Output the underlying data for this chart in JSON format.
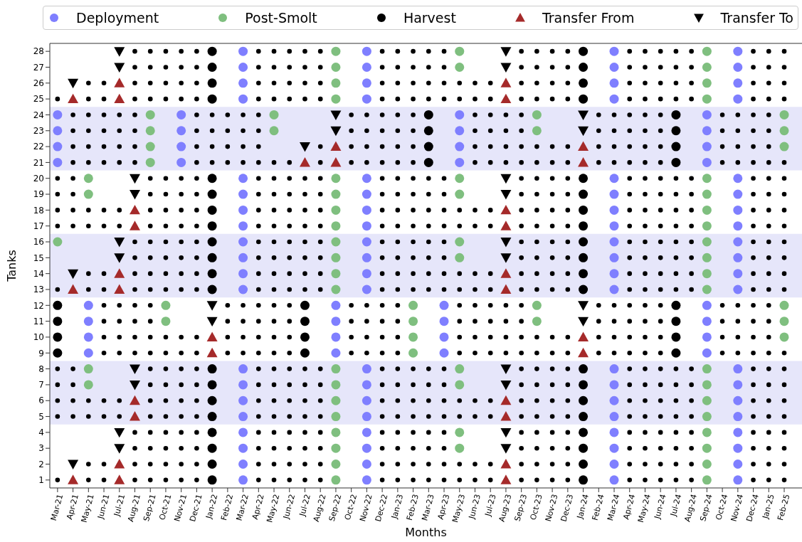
{
  "chart_data": {
    "type": "scatter",
    "xlabel": "Months",
    "ylabel": "Tanks",
    "legend": "top",
    "categories": [
      "Mar-21",
      "Apr-21",
      "May-21",
      "Jun-21",
      "Jul-21",
      "Aug-21",
      "Sep-21",
      "Oct-21",
      "Nov-21",
      "Dec-21",
      "Jan-22",
      "Feb-22",
      "Mar-22",
      "Apr-22",
      "May-22",
      "Jun-22",
      "Jul-22",
      "Aug-22",
      "Sep-22",
      "Oct-22",
      "Nov-22",
      "Dec-22",
      "Jan-23",
      "Feb-23",
      "Mar-23",
      "Apr-23",
      "May-23",
      "Jun-23",
      "Jul-23",
      "Aug-23",
      "Sep-23",
      "Oct-23",
      "Nov-23",
      "Dec-23",
      "Jan-24",
      "Feb-24",
      "Mar-24",
      "Apr-24",
      "May-24",
      "Jun-24",
      "Jul-24",
      "Aug-24",
      "Sep-24",
      "Oct-24",
      "Nov-24",
      "Dec-24",
      "Jan-25",
      "Feb-25"
    ],
    "ylim": [
      0.5,
      28.5
    ],
    "yticks": [
      1,
      2,
      3,
      4,
      5,
      6,
      7,
      8,
      9,
      10,
      11,
      12,
      13,
      14,
      15,
      16,
      17,
      18,
      19,
      20,
      21,
      22,
      23,
      24,
      25,
      26,
      27,
      28
    ],
    "bands": [
      {
        "axis": "y",
        "from": 4.5,
        "to": 8.5,
        "color": "#e6e6fa"
      },
      {
        "axis": "y",
        "from": 12.5,
        "to": 16.5,
        "color": "#e6e6fa"
      },
      {
        "axis": "y",
        "from": 20.5,
        "to": 24.5,
        "color": "#e6e6fa"
      }
    ],
    "series": [
      {
        "name": "Deployment",
        "color": "#7f7fff",
        "marker": "circle",
        "x": [
          "Mar-21",
          "Mar-21",
          "Mar-21",
          "Mar-21",
          "May-21",
          "May-21",
          "May-21",
          "May-21",
          "Nov-21",
          "Nov-21",
          "Nov-21",
          "Nov-21",
          "Mar-22",
          "Mar-22",
          "Mar-22",
          "Mar-22",
          "Mar-22",
          "Mar-22",
          "Mar-22",
          "Mar-22",
          "Mar-22",
          "Mar-22",
          "Mar-22",
          "Mar-22",
          "Mar-22",
          "Mar-22",
          "Mar-22",
          "Mar-22",
          "Mar-22",
          "Mar-22",
          "Mar-22",
          "Mar-22",
          "Sep-22",
          "Sep-22",
          "Sep-22",
          "Sep-22",
          "Nov-22",
          "Nov-22",
          "Nov-22",
          "Nov-22",
          "Nov-22",
          "Nov-22",
          "Nov-22",
          "Nov-22",
          "Nov-22",
          "Nov-22",
          "Nov-22",
          "Nov-22",
          "Nov-22",
          "Nov-22",
          "Nov-22",
          "Nov-22",
          "Nov-22",
          "Nov-22",
          "Nov-22",
          "Nov-22",
          "Apr-23",
          "Apr-23",
          "Apr-23",
          "Apr-23",
          "May-23",
          "May-23",
          "May-23",
          "May-23",
          "Mar-24",
          "Mar-24",
          "Mar-24",
          "Mar-24",
          "Mar-24",
          "Mar-24",
          "Mar-24",
          "Mar-24",
          "Mar-24",
          "Mar-24",
          "Mar-24",
          "Mar-24",
          "Mar-24",
          "Mar-24",
          "Mar-24",
          "Mar-24",
          "Mar-24",
          "Mar-24",
          "Mar-24",
          "Mar-24",
          "Sep-24",
          "Sep-24",
          "Sep-24",
          "Sep-24",
          "Sep-24",
          "Sep-24",
          "Sep-24",
          "Sep-24",
          "Nov-24",
          "Nov-24",
          "Nov-24",
          "Nov-24",
          "Nov-24",
          "Nov-24",
          "Nov-24",
          "Nov-24",
          "Nov-24",
          "Nov-24",
          "Nov-24",
          "Nov-24",
          "Nov-24",
          "Nov-24",
          "Nov-24",
          "Nov-24",
          "Nov-24",
          "Nov-24",
          "Nov-24",
          "Nov-24"
        ],
        "values": [
          21,
          22,
          23,
          24,
          9,
          10,
          11,
          12,
          21,
          22,
          23,
          24,
          1,
          2,
          3,
          4,
          5,
          6,
          7,
          8,
          13,
          14,
          15,
          16,
          17,
          18,
          19,
          20,
          25,
          26,
          27,
          28,
          9,
          10,
          11,
          12,
          1,
          2,
          3,
          4,
          5,
          6,
          7,
          8,
          13,
          14,
          15,
          16,
          17,
          18,
          19,
          20,
          25,
          26,
          27,
          28,
          9,
          10,
          11,
          12,
          21,
          22,
          23,
          24,
          1,
          2,
          3,
          4,
          5,
          6,
          7,
          8,
          13,
          14,
          15,
          16,
          17,
          18,
          19,
          20,
          25,
          26,
          27,
          28,
          9,
          10,
          11,
          12,
          21,
          22,
          23,
          24,
          1,
          2,
          3,
          4,
          5,
          6,
          7,
          8,
          13,
          14,
          15,
          16,
          17,
          18,
          19,
          20,
          25,
          26,
          27,
          28
        ]
      },
      {
        "name": "Post-Smolt",
        "color": "#7fbf7f",
        "marker": "circle",
        "x": [
          "Mar-21",
          "May-21",
          "May-21",
          "May-21",
          "May-21",
          "Sep-21",
          "Sep-21",
          "Sep-21",
          "Sep-21",
          "Oct-21",
          "Oct-21",
          "May-22",
          "May-22",
          "Sep-22",
          "Sep-22",
          "Sep-22",
          "Sep-22",
          "Sep-22",
          "Sep-22",
          "Sep-22",
          "Sep-22",
          "Sep-22",
          "Sep-22",
          "Sep-22",
          "Sep-22",
          "Sep-22",
          "Sep-22",
          "Sep-22",
          "Sep-22",
          "Sep-22",
          "Sep-22",
          "Sep-22",
          "Sep-22",
          "Feb-23",
          "Feb-23",
          "Feb-23",
          "Feb-23",
          "May-23",
          "May-23",
          "May-23",
          "May-23",
          "May-23",
          "May-23",
          "May-23",
          "May-23",
          "May-23",
          "May-23",
          "Oct-23",
          "Oct-23",
          "Oct-23",
          "Oct-23",
          "Sep-24",
          "Sep-24",
          "Sep-24",
          "Sep-24",
          "Sep-24",
          "Sep-24",
          "Sep-24",
          "Sep-24",
          "Sep-24",
          "Sep-24",
          "Sep-24",
          "Sep-24",
          "Sep-24",
          "Sep-24",
          "Sep-24",
          "Sep-24",
          "Sep-24",
          "Sep-24",
          "Sep-24",
          "Sep-24",
          "Feb-25",
          "Feb-25",
          "Feb-25",
          "Feb-25",
          "Feb-25",
          "Feb-25"
        ],
        "values": [
          16,
          7,
          8,
          19,
          20,
          21,
          22,
          23,
          24,
          11,
          12,
          23,
          24,
          1,
          2,
          3,
          4,
          5,
          6,
          7,
          8,
          13,
          14,
          15,
          16,
          17,
          18,
          19,
          20,
          25,
          26,
          27,
          28,
          9,
          10,
          11,
          12,
          3,
          4,
          7,
          8,
          15,
          16,
          19,
          20,
          27,
          28,
          11,
          12,
          23,
          24,
          1,
          2,
          3,
          4,
          5,
          6,
          7,
          8,
          13,
          14,
          15,
          16,
          17,
          18,
          19,
          20,
          25,
          26,
          27,
          28,
          10,
          11,
          12,
          22,
          23,
          24
        ]
      },
      {
        "name": "Harvest",
        "color": "#000000",
        "marker": "circle",
        "x": [
          "Mar-21",
          "Mar-21",
          "Mar-21",
          "Mar-21",
          "Jan-22",
          "Jan-22",
          "Jan-22",
          "Jan-22",
          "Jan-22",
          "Jan-22",
          "Jan-22",
          "Jan-22",
          "Jan-22",
          "Jan-22",
          "Jan-22",
          "Jan-22",
          "Jan-22",
          "Jan-22",
          "Jan-22",
          "Jan-22",
          "Jan-22",
          "Jan-22",
          "Jan-22",
          "Jan-22",
          "Jul-22",
          "Jul-22",
          "Jul-22",
          "Jul-22",
          "Mar-23",
          "Mar-23",
          "Mar-23",
          "Mar-23",
          "Jan-24",
          "Jan-24",
          "Jan-24",
          "Jan-24",
          "Jan-24",
          "Jan-24",
          "Jan-24",
          "Jan-24",
          "Jan-24",
          "Jan-24",
          "Jan-24",
          "Jan-24",
          "Jan-24",
          "Jan-24",
          "Jan-24",
          "Jan-24",
          "Jan-24",
          "Jan-24",
          "Jan-24",
          "Jan-24",
          "Jul-24",
          "Jul-24",
          "Jul-24",
          "Jul-24",
          "Jul-24",
          "Jul-24",
          "Jul-24",
          "Jul-24"
        ],
        "values": [
          9,
          10,
          11,
          12,
          1,
          2,
          3,
          4,
          5,
          6,
          7,
          8,
          13,
          14,
          15,
          16,
          17,
          18,
          19,
          20,
          25,
          26,
          27,
          28,
          9,
          10,
          11,
          12,
          21,
          22,
          23,
          24,
          1,
          2,
          3,
          4,
          5,
          6,
          7,
          8,
          13,
          14,
          15,
          16,
          17,
          18,
          19,
          20,
          25,
          26,
          27,
          28,
          9,
          10,
          11,
          12,
          21,
          22,
          23,
          24
        ]
      },
      {
        "name": "Transfer From",
        "color": "#a52a2a",
        "marker": "triangle",
        "x": [
          "Apr-21",
          "Apr-21",
          "Apr-21",
          "Jul-21",
          "Jul-21",
          "Jul-21",
          "Jul-21",
          "Jul-21",
          "Jul-21",
          "Aug-21",
          "Aug-21",
          "Aug-21",
          "Aug-21",
          "Jan-22",
          "Jan-22",
          "Jul-22",
          "Sep-22",
          "Sep-22",
          "Aug-23",
          "Aug-23",
          "Aug-23",
          "Aug-23",
          "Aug-23",
          "Aug-23",
          "Aug-23",
          "Aug-23",
          "Aug-23",
          "Aug-23",
          "Jan-24",
          "Jan-24",
          "Jan-24",
          "Jan-24"
        ],
        "values": [
          1,
          13,
          25,
          1,
          2,
          13,
          14,
          25,
          26,
          5,
          6,
          17,
          18,
          9,
          10,
          21,
          21,
          22,
          1,
          2,
          5,
          6,
          13,
          14,
          17,
          18,
          25,
          26,
          9,
          10,
          21,
          22
        ]
      },
      {
        "name": "Transfer To",
        "color": "#000000",
        "marker": "triangle-down",
        "x": [
          "Apr-21",
          "Apr-21",
          "Apr-21",
          "Jul-21",
          "Jul-21",
          "Jul-21",
          "Jul-21",
          "Jul-21",
          "Jul-21",
          "Aug-21",
          "Aug-21",
          "Aug-21",
          "Aug-21",
          "Jan-22",
          "Jan-22",
          "Jul-22",
          "Sep-22",
          "Sep-22",
          "Aug-23",
          "Aug-23",
          "Aug-23",
          "Aug-23",
          "Aug-23",
          "Aug-23",
          "Aug-23",
          "Aug-23",
          "Aug-23",
          "Aug-23",
          "Jan-24",
          "Jan-24",
          "Jan-24",
          "Jan-24"
        ],
        "values": [
          2,
          14,
          26,
          3,
          4,
          15,
          16,
          27,
          28,
          7,
          8,
          19,
          20,
          11,
          12,
          22,
          23,
          24,
          3,
          4,
          7,
          8,
          15,
          16,
          19,
          20,
          27,
          28,
          11,
          12,
          23,
          24
        ]
      },
      {
        "color": "#000000",
        "marker": "circle",
        "values": [
          1,
          null,
          1,
          1,
          null,
          1,
          1,
          1,
          1,
          1,
          null,
          null,
          null,
          1,
          1,
          1,
          1,
          1,
          null,
          null,
          null,
          1,
          1,
          1,
          1,
          1,
          1,
          1,
          1,
          null,
          1,
          1,
          1,
          1,
          null,
          null,
          null,
          1,
          1,
          1,
          1,
          1,
          null,
          null,
          null,
          1,
          1,
          1
        ]
      },
      {
        "color": "#000000",
        "marker": "circle",
        "values": [
          null,
          null,
          2,
          2,
          null,
          2,
          2,
          2,
          2,
          2,
          null,
          null,
          null,
          2,
          2,
          2,
          2,
          2,
          null,
          null,
          null,
          2,
          2,
          2,
          2,
          2,
          2,
          2,
          2,
          null,
          2,
          2,
          2,
          2,
          null,
          null,
          null,
          2,
          2,
          2,
          2,
          2,
          null,
          null,
          null,
          2,
          2,
          2
        ]
      },
      {
        "color": "#000000",
        "marker": "circle",
        "values": [
          null,
          null,
          null,
          null,
          null,
          3,
          3,
          3,
          3,
          3,
          null,
          null,
          null,
          3,
          3,
          3,
          3,
          3,
          null,
          null,
          null,
          3,
          3,
          3,
          3,
          3,
          null,
          null,
          null,
          null,
          3,
          3,
          3,
          3,
          null,
          null,
          null,
          3,
          3,
          3,
          3,
          3,
          null,
          null,
          null,
          3,
          3,
          3
        ]
      },
      {
        "color": "#000000",
        "marker": "circle",
        "values": [
          null,
          null,
          null,
          null,
          null,
          4,
          4,
          4,
          4,
          4,
          null,
          null,
          null,
          4,
          4,
          4,
          4,
          4,
          null,
          null,
          null,
          4,
          4,
          4,
          4,
          4,
          null,
          null,
          null,
          null,
          4,
          4,
          4,
          4,
          null,
          null,
          null,
          4,
          4,
          4,
          4,
          4,
          null,
          null,
          null,
          4,
          4,
          4
        ]
      },
      {
        "color": "#000000",
        "marker": "circle",
        "values": [
          5,
          5,
          5,
          5,
          5,
          null,
          5,
          5,
          5,
          5,
          null,
          null,
          null,
          5,
          5,
          5,
          5,
          5,
          null,
          null,
          null,
          5,
          5,
          5,
          5,
          5,
          5,
          5,
          5,
          null,
          5,
          5,
          5,
          5,
          null,
          null,
          null,
          5,
          5,
          5,
          5,
          5,
          null,
          null,
          null,
          5,
          5,
          5
        ]
      },
      {
        "color": "#000000",
        "marker": "circle",
        "values": [
          6,
          6,
          6,
          6,
          6,
          null,
          6,
          6,
          6,
          6,
          null,
          null,
          null,
          6,
          6,
          6,
          6,
          6,
          null,
          null,
          null,
          6,
          6,
          6,
          6,
          6,
          6,
          6,
          6,
          null,
          6,
          6,
          6,
          6,
          null,
          null,
          null,
          6,
          6,
          6,
          6,
          6,
          null,
          null,
          null,
          6,
          6,
          6
        ]
      },
      {
        "color": "#000000",
        "marker": "circle",
        "values": [
          7,
          7,
          null,
          null,
          null,
          null,
          7,
          7,
          7,
          7,
          null,
          null,
          null,
          7,
          7,
          7,
          7,
          7,
          null,
          null,
          null,
          7,
          7,
          7,
          7,
          7,
          null,
          null,
          null,
          null,
          7,
          7,
          7,
          7,
          null,
          null,
          null,
          7,
          7,
          7,
          7,
          7,
          null,
          null,
          null,
          7,
          7,
          7
        ]
      },
      {
        "color": "#000000",
        "marker": "circle",
        "values": [
          8,
          8,
          null,
          null,
          null,
          null,
          8,
          8,
          8,
          8,
          null,
          null,
          null,
          8,
          8,
          8,
          8,
          8,
          null,
          null,
          null,
          8,
          8,
          8,
          8,
          8,
          null,
          null,
          null,
          null,
          8,
          8,
          8,
          8,
          null,
          null,
          null,
          8,
          8,
          8,
          8,
          8,
          null,
          null,
          null,
          8,
          8,
          8
        ]
      },
      {
        "color": "#000000",
        "marker": "circle",
        "values": [
          null,
          null,
          null,
          9,
          9,
          9,
          9,
          9,
          9,
          9,
          null,
          9,
          9,
          9,
          9,
          9,
          null,
          null,
          null,
          9,
          9,
          9,
          9,
          null,
          null,
          null,
          9,
          9,
          9,
          9,
          9,
          9,
          9,
          9,
          null,
          9,
          9,
          9,
          9,
          9,
          null,
          null,
          null,
          9,
          9,
          9,
          9,
          9
        ]
      },
      {
        "color": "#000000",
        "marker": "circle",
        "values": [
          null,
          null,
          null,
          10,
          10,
          10,
          10,
          10,
          10,
          10,
          null,
          10,
          10,
          10,
          10,
          10,
          null,
          null,
          null,
          10,
          10,
          10,
          10,
          null,
          null,
          null,
          10,
          10,
          10,
          10,
          10,
          10,
          10,
          10,
          null,
          10,
          10,
          10,
          10,
          10,
          null,
          null,
          null,
          10,
          10,
          10,
          10,
          null
        ]
      },
      {
        "color": "#000000",
        "marker": "circle",
        "values": [
          null,
          null,
          null,
          11,
          11,
          11,
          11,
          null,
          null,
          null,
          null,
          11,
          11,
          11,
          11,
          11,
          null,
          null,
          null,
          11,
          11,
          11,
          11,
          null,
          null,
          null,
          11,
          11,
          11,
          11,
          11,
          null,
          null,
          null,
          null,
          11,
          11,
          11,
          11,
          11,
          null,
          null,
          null,
          11,
          11,
          11,
          11,
          null
        ]
      },
      {
        "color": "#000000",
        "marker": "circle",
        "values": [
          null,
          null,
          null,
          12,
          12,
          12,
          12,
          null,
          null,
          null,
          null,
          12,
          12,
          12,
          12,
          12,
          null,
          null,
          null,
          12,
          12,
          12,
          12,
          null,
          null,
          null,
          12,
          12,
          12,
          12,
          12,
          null,
          null,
          null,
          null,
          12,
          12,
          12,
          12,
          12,
          null,
          null,
          null,
          12,
          12,
          12,
          12,
          null
        ]
      },
      {
        "color": "#000000",
        "marker": "circle",
        "values": [
          13,
          null,
          13,
          13,
          null,
          13,
          13,
          13,
          13,
          13,
          null,
          null,
          null,
          13,
          13,
          13,
          13,
          13,
          null,
          null,
          null,
          13,
          13,
          13,
          13,
          13,
          13,
          13,
          13,
          null,
          13,
          13,
          13,
          13,
          null,
          null,
          null,
          13,
          13,
          13,
          13,
          13,
          null,
          null,
          null,
          13,
          13,
          13
        ]
      },
      {
        "color": "#000000",
        "marker": "circle",
        "values": [
          null,
          null,
          14,
          14,
          null,
          14,
          14,
          14,
          14,
          14,
          null,
          null,
          null,
          14,
          14,
          14,
          14,
          14,
          null,
          null,
          null,
          14,
          14,
          14,
          14,
          14,
          14,
          14,
          14,
          null,
          14,
          14,
          14,
          14,
          null,
          null,
          null,
          14,
          14,
          14,
          14,
          14,
          null,
          null,
          null,
          14,
          14,
          14
        ]
      },
      {
        "color": "#000000",
        "marker": "circle",
        "values": [
          null,
          null,
          null,
          null,
          null,
          15,
          15,
          15,
          15,
          15,
          null,
          null,
          null,
          15,
          15,
          15,
          15,
          15,
          null,
          null,
          null,
          15,
          15,
          15,
          15,
          15,
          null,
          null,
          null,
          null,
          15,
          15,
          15,
          15,
          null,
          null,
          null,
          15,
          15,
          15,
          15,
          15,
          null,
          null,
          null,
          15,
          15,
          15
        ]
      },
      {
        "color": "#000000",
        "marker": "circle",
        "values": [
          null,
          null,
          null,
          null,
          null,
          16,
          16,
          16,
          16,
          16,
          null,
          null,
          null,
          16,
          16,
          16,
          16,
          16,
          null,
          null,
          null,
          16,
          16,
          16,
          16,
          16,
          null,
          null,
          null,
          null,
          16,
          16,
          16,
          16,
          null,
          null,
          null,
          16,
          16,
          16,
          16,
          16,
          null,
          null,
          null,
          16,
          16,
          16
        ]
      },
      {
        "color": "#000000",
        "marker": "circle",
        "values": [
          17,
          17,
          17,
          17,
          17,
          null,
          17,
          17,
          17,
          17,
          null,
          null,
          null,
          17,
          17,
          17,
          17,
          17,
          null,
          null,
          null,
          17,
          17,
          17,
          17,
          17,
          17,
          17,
          17,
          null,
          17,
          17,
          17,
          17,
          null,
          null,
          null,
          17,
          17,
          17,
          17,
          17,
          null,
          null,
          null,
          17,
          17,
          17
        ]
      },
      {
        "color": "#000000",
        "marker": "circle",
        "values": [
          18,
          18,
          18,
          18,
          18,
          null,
          18,
          18,
          18,
          18,
          null,
          null,
          null,
          18,
          18,
          18,
          18,
          18,
          null,
          null,
          null,
          18,
          18,
          18,
          18,
          18,
          18,
          18,
          18,
          null,
          18,
          18,
          18,
          18,
          null,
          null,
          null,
          18,
          18,
          18,
          18,
          18,
          null,
          null,
          null,
          18,
          18,
          18
        ]
      },
      {
        "color": "#000000",
        "marker": "circle",
        "values": [
          19,
          19,
          null,
          null,
          null,
          null,
          19,
          19,
          19,
          19,
          null,
          null,
          null,
          19,
          19,
          19,
          19,
          19,
          null,
          null,
          null,
          19,
          19,
          19,
          19,
          19,
          null,
          null,
          null,
          null,
          19,
          19,
          19,
          19,
          null,
          null,
          null,
          19,
          19,
          19,
          19,
          19,
          null,
          null,
          null,
          19,
          19,
          19
        ]
      },
      {
        "color": "#000000",
        "marker": "circle",
        "values": [
          20,
          20,
          null,
          null,
          null,
          null,
          20,
          20,
          20,
          20,
          null,
          null,
          null,
          20,
          20,
          20,
          20,
          20,
          null,
          null,
          null,
          20,
          20,
          20,
          20,
          20,
          null,
          null,
          null,
          null,
          20,
          20,
          20,
          20,
          null,
          null,
          null,
          20,
          20,
          20,
          20,
          20,
          null,
          null,
          null,
          20,
          20,
          20
        ]
      },
      {
        "color": "#000000",
        "marker": "circle",
        "values": [
          null,
          21,
          21,
          21,
          21,
          21,
          null,
          null,
          null,
          21,
          21,
          21,
          21,
          21,
          21,
          21,
          null,
          21,
          null,
          21,
          21,
          21,
          21,
          21,
          null,
          null,
          null,
          21,
          21,
          21,
          21,
          21,
          21,
          21,
          null,
          21,
          21,
          21,
          21,
          21,
          null,
          null,
          null,
          21,
          21,
          21,
          21,
          21
        ]
      },
      {
        "color": "#000000",
        "marker": "circle",
        "values": [
          null,
          22,
          22,
          22,
          22,
          22,
          null,
          null,
          null,
          22,
          22,
          22,
          22,
          22,
          null,
          null,
          null,
          22,
          null,
          22,
          22,
          22,
          22,
          22,
          null,
          null,
          null,
          22,
          22,
          22,
          22,
          22,
          22,
          22,
          null,
          22,
          22,
          22,
          22,
          22,
          null,
          null,
          null,
          22,
          22,
          22,
          22,
          null
        ]
      },
      {
        "color": "#000000",
        "marker": "circle",
        "values": [
          null,
          23,
          23,
          23,
          23,
          23,
          null,
          null,
          null,
          23,
          23,
          23,
          23,
          23,
          null,
          null,
          null,
          null,
          null,
          23,
          23,
          23,
          23,
          23,
          null,
          null,
          null,
          23,
          23,
          23,
          23,
          null,
          null,
          null,
          null,
          23,
          23,
          23,
          23,
          23,
          null,
          null,
          null,
          23,
          23,
          23,
          23,
          null
        ]
      },
      {
        "color": "#000000",
        "marker": "circle",
        "values": [
          null,
          24,
          24,
          24,
          24,
          24,
          null,
          null,
          null,
          24,
          24,
          24,
          24,
          24,
          null,
          null,
          null,
          null,
          null,
          24,
          24,
          24,
          24,
          24,
          null,
          null,
          null,
          24,
          24,
          24,
          24,
          null,
          null,
          null,
          null,
          24,
          24,
          24,
          24,
          24,
          null,
          null,
          null,
          24,
          24,
          24,
          24,
          null
        ]
      },
      {
        "color": "#000000",
        "marker": "circle",
        "values": [
          25,
          null,
          25,
          25,
          null,
          25,
          25,
          25,
          25,
          25,
          null,
          null,
          null,
          25,
          25,
          25,
          25,
          25,
          null,
          null,
          null,
          25,
          25,
          25,
          25,
          25,
          25,
          25,
          25,
          null,
          25,
          25,
          25,
          25,
          null,
          null,
          null,
          25,
          25,
          25,
          25,
          25,
          null,
          null,
          null,
          25,
          25,
          25
        ]
      },
      {
        "color": "#000000",
        "marker": "circle",
        "values": [
          null,
          null,
          26,
          26,
          null,
          26,
          26,
          26,
          26,
          26,
          null,
          null,
          null,
          26,
          26,
          26,
          26,
          26,
          null,
          null,
          null,
          26,
          26,
          26,
          26,
          26,
          26,
          26,
          26,
          null,
          26,
          26,
          26,
          26,
          null,
          null,
          null,
          26,
          26,
          26,
          26,
          26,
          null,
          null,
          null,
          26,
          26,
          26
        ]
      },
      {
        "color": "#000000",
        "marker": "circle",
        "values": [
          null,
          null,
          null,
          null,
          null,
          27,
          27,
          27,
          27,
          27,
          null,
          null,
          null,
          27,
          27,
          27,
          27,
          27,
          null,
          null,
          null,
          27,
          27,
          27,
          27,
          27,
          null,
          null,
          null,
          null,
          27,
          27,
          27,
          27,
          null,
          null,
          null,
          27,
          27,
          27,
          27,
          27,
          null,
          null,
          null,
          27,
          27,
          27
        ]
      },
      {
        "color": "#000000",
        "marker": "circle",
        "values": [
          null,
          null,
          null,
          null,
          null,
          28,
          28,
          28,
          28,
          28,
          null,
          null,
          null,
          28,
          28,
          28,
          28,
          28,
          null,
          null,
          null,
          28,
          28,
          28,
          28,
          28,
          null,
          null,
          null,
          null,
          28,
          28,
          28,
          28,
          null,
          null,
          null,
          28,
          28,
          28,
          28,
          28,
          null,
          null,
          null,
          28,
          28,
          28
        ]
      }
    ]
  }
}
